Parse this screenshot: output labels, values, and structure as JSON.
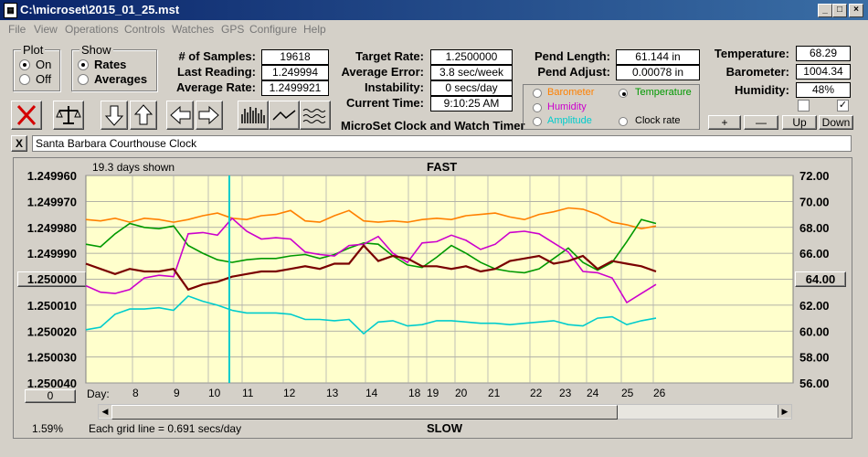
{
  "window": {
    "title": "C:\\microset\\2015_01_25.mst"
  },
  "menu": [
    "File",
    "View",
    "Operations",
    "Controls",
    "Watches",
    "GPS",
    "Configure",
    "Help"
  ],
  "plot_group": {
    "title": "Plot",
    "on": "On",
    "off": "Off",
    "selected": "On"
  },
  "show_group": {
    "title": "Show",
    "rates": "Rates",
    "averages": "Averages",
    "selected": "Rates"
  },
  "stats": {
    "samples_label": "# of Samples:",
    "samples": "19618",
    "last_label": "Last Reading:",
    "last": "1.249994",
    "avg_label": "Average Rate:",
    "avg": "1.2499921",
    "target_label": "Target Rate:",
    "target": "1.2500000",
    "avgerr_label": "Average Error:",
    "avgerr": "3.8 sec/week",
    "instab_label": "Instability:",
    "instab": "0 secs/day",
    "time_label": "Current Time:",
    "time": "9:10:25 AM",
    "pendlen_label": "Pend Length:",
    "pendlen": "61.144 in",
    "pendadj_label": "Pend Adjust:",
    "pendadj": "0.00078 in",
    "temp_label": "Temperature:",
    "temp": "68.29",
    "baro_label": "Barometer:",
    "baro": "1004.34",
    "hum_label": "Humidity:",
    "hum": "48%"
  },
  "app_caption": "MicroSet Clock and Watch Timer",
  "sensor_select": {
    "barometer": "Barometer",
    "temperature": "Temperature",
    "humidity": "Humidity",
    "amplitude": "Amplitude",
    "clockrate": "Clock rate",
    "selected": "Temperature",
    "colors": {
      "barometer": "#ff8000",
      "temperature": "#009900",
      "humidity": "#cc00cc",
      "amplitude": "#00cccc",
      "clockrate": "#000000"
    }
  },
  "adjust_buttons": {
    "plus": "+",
    "minus": "—",
    "up": "Up",
    "down": "Down"
  },
  "clock_name": "Santa Barbara Courthouse Clock",
  "clear_label": "X",
  "chart_header": {
    "days_shown": "19.3 days shown",
    "fast": "FAST",
    "slow": "SLOW",
    "grid_note": "Each grid line = 0.691 secs/day",
    "percent": "1.59%",
    "day_label": "Day:",
    "left_center": "1.250000",
    "right_center": "64.00",
    "zero_btn": "0"
  },
  "chart_data": {
    "type": "line",
    "left_ticks": [
      "1.249960",
      "1.249970",
      "1.249980",
      "1.249990",
      "1.250000",
      "1.250010",
      "1.250020",
      "1.250030",
      "1.250040"
    ],
    "right_ticks": [
      "72.00",
      "70.00",
      "68.00",
      "66.00",
      "64.00",
      "62.00",
      "60.00",
      "58.00",
      "56.00"
    ],
    "days": [
      "8",
      "9",
      "10",
      "11",
      "12",
      "13",
      "14",
      "18",
      "19",
      "20",
      "21",
      "22",
      "23",
      "24",
      "25",
      "26"
    ],
    "left_ylim": [
      1.24996,
      1.25004
    ],
    "right_ylim": [
      56,
      72
    ],
    "series": [
      {
        "name": "Barometer",
        "color": "#ff8000",
        "values": [
          68.6,
          68.5,
          68.7,
          68.4,
          68.7,
          68.6,
          68.4,
          68.6,
          68.9,
          69.1,
          68.7,
          68.6,
          68.9,
          69.0,
          69.3,
          68.5,
          68.4,
          68.9,
          69.3,
          68.5,
          68.4,
          68.5,
          68.4,
          68.6,
          68.7,
          68.6,
          68.9,
          69.0,
          69.1,
          68.8,
          68.6,
          69.0,
          69.2,
          69.5,
          69.4,
          69.0,
          68.4,
          68.2,
          67.9,
          68.1
        ]
      },
      {
        "name": "Temperature",
        "color": "#009900",
        "values": [
          66.7,
          66.5,
          67.5,
          68.3,
          68.0,
          67.9,
          68.1,
          66.6,
          66.0,
          65.5,
          65.3,
          65.5,
          65.6,
          65.6,
          65.8,
          65.9,
          65.6,
          65.9,
          66.4,
          66.8,
          66.7,
          65.8,
          65.1,
          64.9,
          65.7,
          66.6,
          66.0,
          65.3,
          64.8,
          64.6,
          64.5,
          64.8,
          65.6,
          66.4,
          65.3,
          64.7,
          65.3,
          66.9,
          68.6,
          68.3
        ]
      },
      {
        "name": "Humidity",
        "color": "#cc00cc",
        "values": [
          63.5,
          63.0,
          62.9,
          63.2,
          64.1,
          64.3,
          64.2,
          67.5,
          67.6,
          67.4,
          68.7,
          67.7,
          67.1,
          67.2,
          67.1,
          66.1,
          65.9,
          65.8,
          66.6,
          66.7,
          67.3,
          66.0,
          65.3,
          66.8,
          66.9,
          67.4,
          67.0,
          66.3,
          66.7,
          67.6,
          67.7,
          67.5,
          66.8,
          66.1,
          64.6,
          64.5,
          64.1,
          62.2,
          62.9,
          63.6
        ]
      },
      {
        "name": "Amplitude",
        "color": "#00cccc",
        "values": [
          60.1,
          60.3,
          61.3,
          61.7,
          61.7,
          61.8,
          61.6,
          62.7,
          62.3,
          62.0,
          61.6,
          61.4,
          61.4,
          61.4,
          61.3,
          60.9,
          60.9,
          60.8,
          60.9,
          59.8,
          60.7,
          60.8,
          60.4,
          60.5,
          60.8,
          60.8,
          60.7,
          60.6,
          60.6,
          60.5,
          60.6,
          60.7,
          60.8,
          60.5,
          60.4,
          61.0,
          61.1,
          60.5,
          60.8,
          61.0
        ]
      },
      {
        "name": "Clock rate",
        "color": "#7a0000",
        "values": [
          1.249994,
          1.249996,
          1.249998,
          1.249996,
          1.249997,
          1.249997,
          1.249996,
          1.250004,
          1.250002,
          1.250001,
          1.249999,
          1.249998,
          1.249997,
          1.249997,
          1.249996,
          1.249995,
          1.249996,
          1.249994,
          1.249994,
          1.249987,
          1.249993,
          1.249991,
          1.249992,
          1.249995,
          1.249995,
          1.249996,
          1.249995,
          1.249997,
          1.249996,
          1.249993,
          1.249992,
          1.249991,
          1.249994,
          1.249993,
          1.249991,
          1.249996,
          1.249993,
          1.249994,
          1.249995,
          1.249997
        ]
      }
    ]
  }
}
